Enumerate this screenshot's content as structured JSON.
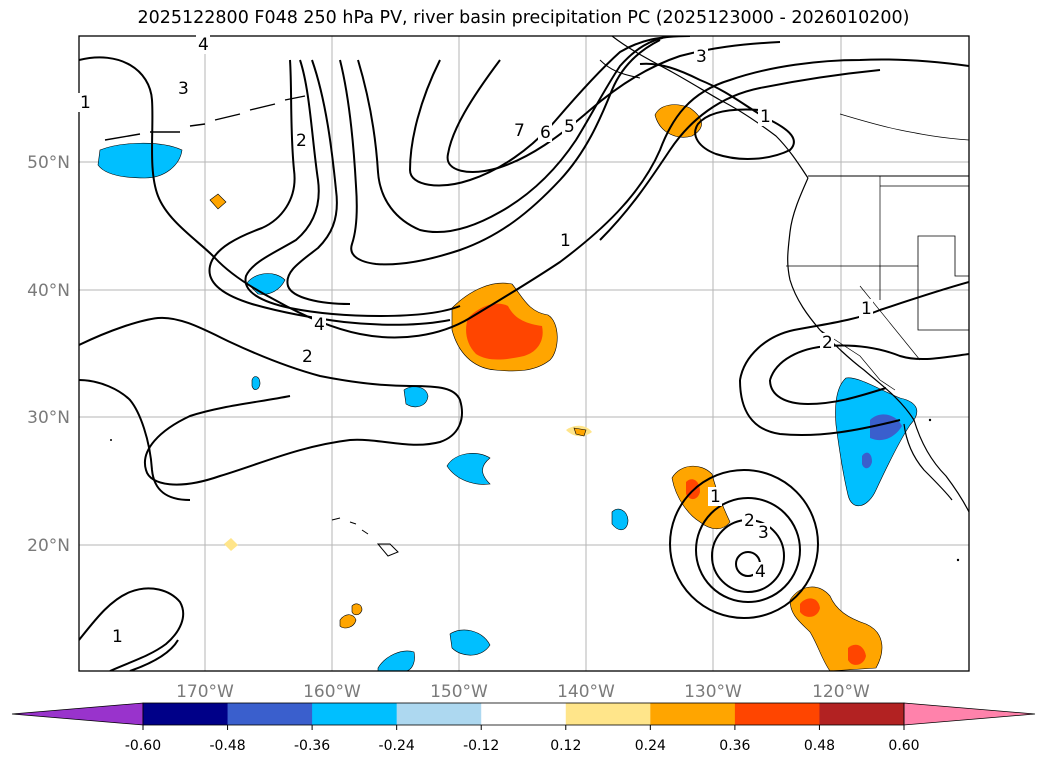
{
  "title": "2025122800 F048 250 hPa PV, river basin precipitation PC (2025123000 - 2026010200)",
  "map": {
    "lat_labels": [
      "50°N",
      "40°N",
      "30°N",
      "20°N"
    ],
    "lon_labels": [
      "170°W",
      "160°W",
      "150°W",
      "140°W",
      "130°W",
      "120°W"
    ],
    "contour_labels": [
      "4",
      "3",
      "2",
      "1",
      "7",
      "6",
      "5",
      "3",
      "1",
      "1",
      "4",
      "2",
      "1",
      "2",
      "1",
      "2",
      "3",
      "4",
      "1"
    ]
  },
  "colorbar": {
    "tick_labels": [
      "-0.60",
      "-0.48",
      "-0.36",
      "-0.24",
      "-0.12",
      "0.12",
      "0.24",
      "0.36",
      "0.48",
      "0.60"
    ],
    "colors": [
      "#9933cc",
      "#000088",
      "#3a5fcd",
      "#00bfff",
      "#add8f0",
      "#ffffff",
      "#ffe58a",
      "#ffa500",
      "#ff4500",
      "#b22222",
      "#ff82ab"
    ]
  }
}
